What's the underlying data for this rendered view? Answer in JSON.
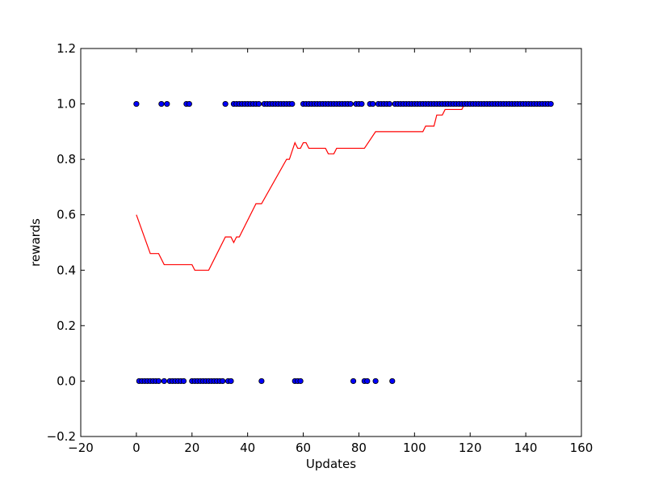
{
  "chart_data": {
    "type": "scatter",
    "title": "",
    "xlabel": "Updates",
    "ylabel": "rewards",
    "xlim": [
      -20,
      160
    ],
    "ylim": [
      -0.2,
      1.2
    ],
    "xticks": [
      -20,
      0,
      20,
      40,
      60,
      80,
      100,
      120,
      140,
      160
    ],
    "yticks": [
      -0.2,
      0.0,
      0.2,
      0.4,
      0.6,
      0.8,
      1.0,
      1.2
    ],
    "xtick_labels": [
      "−20",
      "0",
      "20",
      "40",
      "60",
      "80",
      "100",
      "120",
      "140",
      "160"
    ],
    "ytick_labels": [
      "−0.2",
      "0.0",
      "0.2",
      "0.4",
      "0.6",
      "0.8",
      "1.0",
      "1.2"
    ],
    "grid": false,
    "series": [
      {
        "kind": "scatter",
        "color": "#0000ff",
        "edge_color": "#000000",
        "x": [
          0,
          1,
          2,
          3,
          4,
          5,
          6,
          7,
          8,
          9,
          10,
          11,
          12,
          13,
          14,
          15,
          16,
          17,
          18,
          19,
          20,
          21,
          22,
          23,
          24,
          25,
          26,
          27,
          28,
          29,
          30,
          31,
          32,
          33,
          34,
          35,
          36,
          37,
          38,
          39,
          40,
          41,
          42,
          43,
          44,
          45,
          46,
          47,
          48,
          49,
          50,
          51,
          52,
          53,
          54,
          55,
          56,
          57,
          58,
          59,
          60,
          61,
          62,
          63,
          64,
          65,
          66,
          67,
          68,
          69,
          70,
          71,
          72,
          73,
          74,
          75,
          76,
          77,
          78,
          79,
          80,
          81,
          82,
          83,
          84,
          85,
          86,
          87,
          88,
          89,
          90,
          91,
          92,
          93,
          94,
          95,
          96,
          97,
          98,
          99,
          100,
          101,
          102,
          103,
          104,
          105,
          106,
          107,
          108,
          109,
          110,
          111,
          112,
          113,
          114,
          115,
          116,
          117,
          118,
          119,
          120,
          121,
          122,
          123,
          124,
          125,
          126,
          127,
          128,
          129,
          130,
          131,
          132,
          133,
          134,
          135,
          136,
          137,
          138,
          139,
          140,
          141,
          142,
          143,
          144,
          145,
          146,
          147,
          148,
          149
        ],
        "y": [
          1,
          0,
          0,
          0,
          0,
          0,
          0,
          0,
          0,
          1,
          0,
          1,
          0,
          0,
          0,
          0,
          0,
          0,
          1,
          1,
          0,
          0,
          0,
          0,
          0,
          0,
          0,
          0,
          0,
          0,
          0,
          0,
          1,
          0,
          0,
          1,
          1,
          1,
          1,
          1,
          1,
          1,
          1,
          1,
          1,
          0,
          1,
          1,
          1,
          1,
          1,
          1,
          1,
          1,
          1,
          1,
          1,
          0,
          0,
          0,
          1,
          1,
          1,
          1,
          1,
          1,
          1,
          1,
          1,
          1,
          1,
          1,
          1,
          1,
          1,
          1,
          1,
          1,
          0,
          1,
          1,
          1,
          0,
          0,
          1,
          1,
          0,
          1,
          1,
          1,
          1,
          1,
          0,
          1,
          1,
          1,
          1,
          1,
          1,
          1,
          1,
          1,
          1,
          1,
          1,
          1,
          1,
          1,
          1,
          1,
          1,
          1,
          1,
          1,
          1,
          1,
          1,
          1,
          1,
          1,
          1,
          1,
          1,
          1,
          1,
          1,
          1,
          1,
          1,
          1,
          1,
          1,
          1,
          1,
          1,
          1,
          1,
          1,
          1,
          1,
          1,
          1,
          1,
          1,
          1,
          1,
          1,
          1,
          1,
          1
        ]
      },
      {
        "kind": "line",
        "color": "#ff0000",
        "x": [
          0,
          5,
          8,
          10,
          20,
          21,
          26,
          32,
          34,
          35,
          36,
          37,
          43,
          45,
          54,
          55,
          57,
          58,
          59,
          60,
          61,
          62,
          68,
          69,
          71,
          72,
          82,
          86,
          103,
          104,
          107,
          108,
          110,
          111,
          117,
          118,
          149
        ],
        "y": [
          0.6,
          0.46,
          0.46,
          0.42,
          0.42,
          0.4,
          0.4,
          0.52,
          0.52,
          0.5,
          0.52,
          0.52,
          0.64,
          0.64,
          0.8,
          0.8,
          0.86,
          0.84,
          0.84,
          0.86,
          0.86,
          0.84,
          0.84,
          0.82,
          0.82,
          0.84,
          0.84,
          0.9,
          0.9,
          0.92,
          0.92,
          0.96,
          0.96,
          0.98,
          0.98,
          1.0,
          1.0
        ]
      }
    ]
  }
}
